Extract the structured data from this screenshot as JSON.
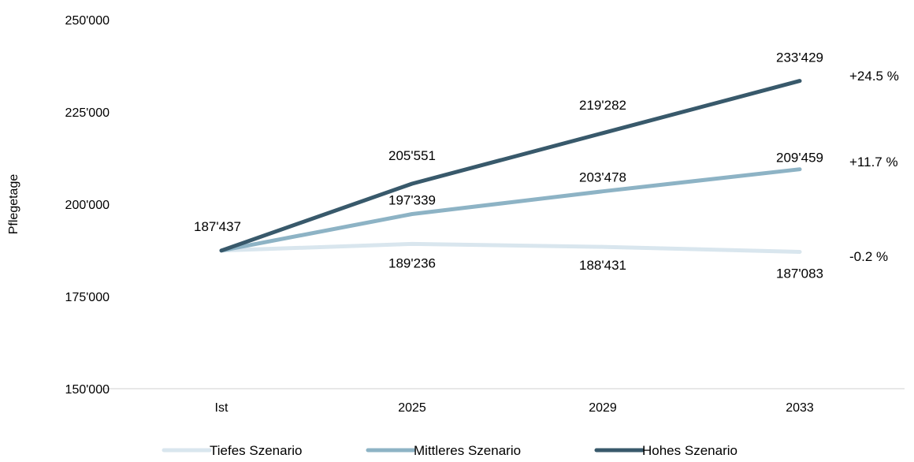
{
  "chart_data": {
    "type": "line",
    "title": "",
    "ylabel": "Pflegetage",
    "xlabel": "",
    "categories": [
      "Ist",
      "2025",
      "2029",
      "2033"
    ],
    "ylim": [
      150000,
      250000
    ],
    "yticks": [
      150000,
      175000,
      200000,
      225000,
      250000
    ],
    "ytick_labels": [
      "150'000",
      "175'000",
      "200'000",
      "225'000",
      "250'000"
    ],
    "grid": false,
    "legend_position": "bottom",
    "series": [
      {
        "name": "Tiefes Szenario",
        "color": "#d9e6ee",
        "values": [
          187437,
          189236,
          188431,
          187083
        ],
        "value_labels": [
          "",
          "189'236",
          "188'431",
          "187'083"
        ],
        "change_label": "-0.2 %"
      },
      {
        "name": "Mittleres Szenario",
        "color": "#8db3c5",
        "values": [
          187437,
          197339,
          203478,
          209459
        ],
        "value_labels": [
          "",
          "197'339",
          "203'478",
          "209'459"
        ],
        "change_label": "+11.7 %"
      },
      {
        "name": "Hohes Szenario",
        "color": "#38596b",
        "values": [
          187437,
          205551,
          219282,
          233429
        ],
        "value_labels": [
          "187'437",
          "205'551",
          "219'282",
          "233'429"
        ],
        "change_label": "+24.5 %"
      }
    ]
  }
}
